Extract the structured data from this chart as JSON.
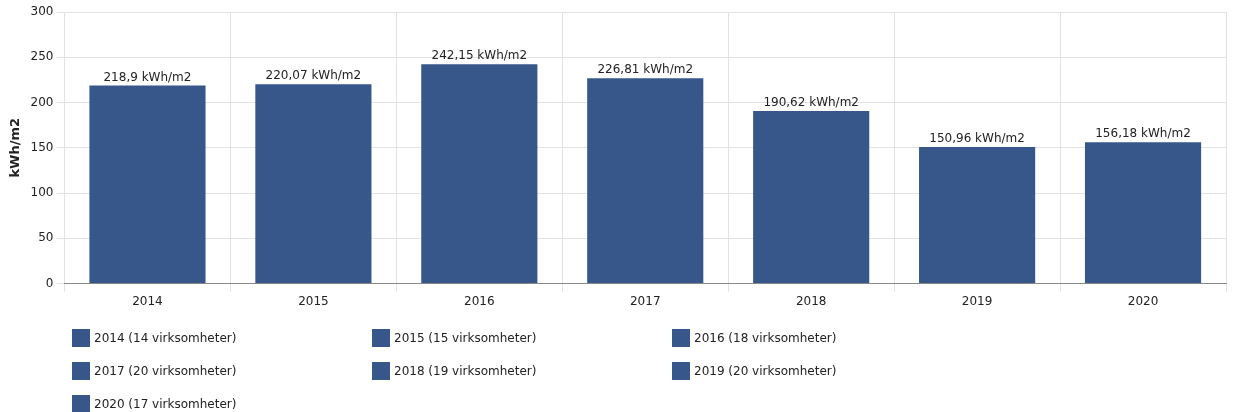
{
  "chart_data": {
    "type": "bar",
    "ylabel": "kWh/m2",
    "categories": [
      "2014",
      "2015",
      "2016",
      "2017",
      "2018",
      "2019",
      "2020"
    ],
    "stacked": true,
    "ylim": [
      0,
      300
    ],
    "yticks": [
      0,
      50,
      100,
      150,
      200,
      250,
      300
    ],
    "grid": true,
    "legend": "bottom",
    "series": [
      {
        "name": "2014 (14 virksomheter)",
        "color": "#37578b",
        "values": [
          218.9,
          null,
          null,
          null,
          null,
          null,
          null
        ],
        "value_labels": [
          "218,9 kWh/m2",
          null,
          null,
          null,
          null,
          null,
          null
        ]
      },
      {
        "name": "2015 (15 virksomheter)",
        "color": "#37578b",
        "values": [
          null,
          220.07,
          null,
          null,
          null,
          null,
          null
        ],
        "value_labels": [
          null,
          "220,07 kWh/m2",
          null,
          null,
          null,
          null,
          null
        ]
      },
      {
        "name": "2016 (18 virksomheter)",
        "color": "#37578b",
        "values": [
          null,
          null,
          242.15,
          null,
          null,
          null,
          null
        ],
        "value_labels": [
          null,
          null,
          "242,15 kWh/m2",
          null,
          null,
          null,
          null
        ]
      },
      {
        "name": "2017 (20 virksomheter)",
        "color": "#37578b",
        "values": [
          null,
          null,
          null,
          226.81,
          null,
          null,
          null
        ],
        "value_labels": [
          null,
          null,
          null,
          "226,81 kWh/m2",
          null,
          null,
          null
        ]
      },
      {
        "name": "2018 (19 virksomheter)",
        "color": "#37578b",
        "values": [
          null,
          null,
          null,
          null,
          190.62,
          null,
          null
        ],
        "value_labels": [
          null,
          null,
          null,
          null,
          "190,62 kWh/m2",
          null,
          null
        ]
      },
      {
        "name": "2019 (20 virksomheter)",
        "color": "#37578b",
        "values": [
          null,
          null,
          null,
          null,
          null,
          150.96,
          null
        ],
        "value_labels": [
          null,
          null,
          null,
          null,
          null,
          "150,96 kWh/m2",
          null
        ]
      },
      {
        "name": "2020 (17 virksomheter)",
        "color": "#37578b",
        "values": [
          null,
          null,
          null,
          null,
          null,
          null,
          156.18
        ],
        "value_labels": [
          null,
          null,
          null,
          null,
          null,
          null,
          "156,18 kWh/m2"
        ]
      }
    ]
  }
}
